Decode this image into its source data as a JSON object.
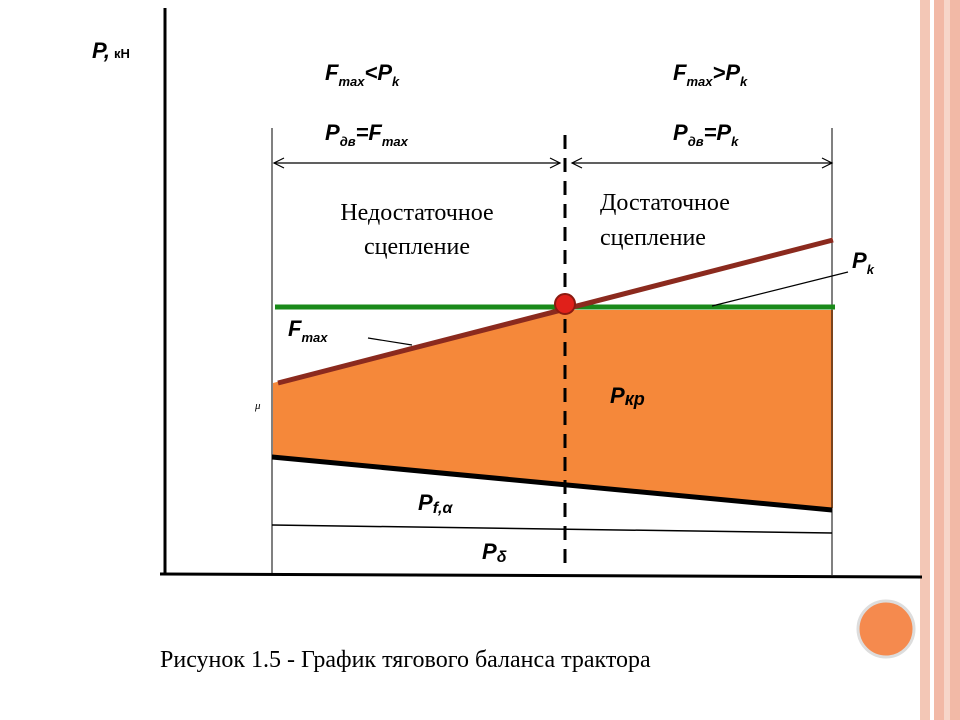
{
  "axis_label": {
    "symbol": "P,",
    "unit": "кН"
  },
  "left_zone": {
    "condition": [
      "F",
      "max",
      "<P",
      "k"
    ],
    "rule": [
      "P",
      "дв",
      "=F",
      "max"
    ],
    "text": [
      "Недостаточное",
      "сцепление"
    ]
  },
  "right_zone": {
    "condition": [
      "F",
      "max",
      ">P",
      "k"
    ],
    "rule": [
      "P",
      "дв",
      "=P",
      "k"
    ],
    "text": [
      "Достаточное",
      "сцепление"
    ]
  },
  "curve_labels": {
    "pk": [
      "P",
      "k"
    ],
    "fmax": [
      "F",
      "max"
    ],
    "mu": "μ",
    "pkr": [
      "P",
      "кр"
    ],
    "pf": [
      "P",
      "f,α"
    ],
    "pdelta": [
      "P",
      "δ"
    ]
  },
  "caption": "Рисунок 1.5 - График тягового баланса трактора"
}
